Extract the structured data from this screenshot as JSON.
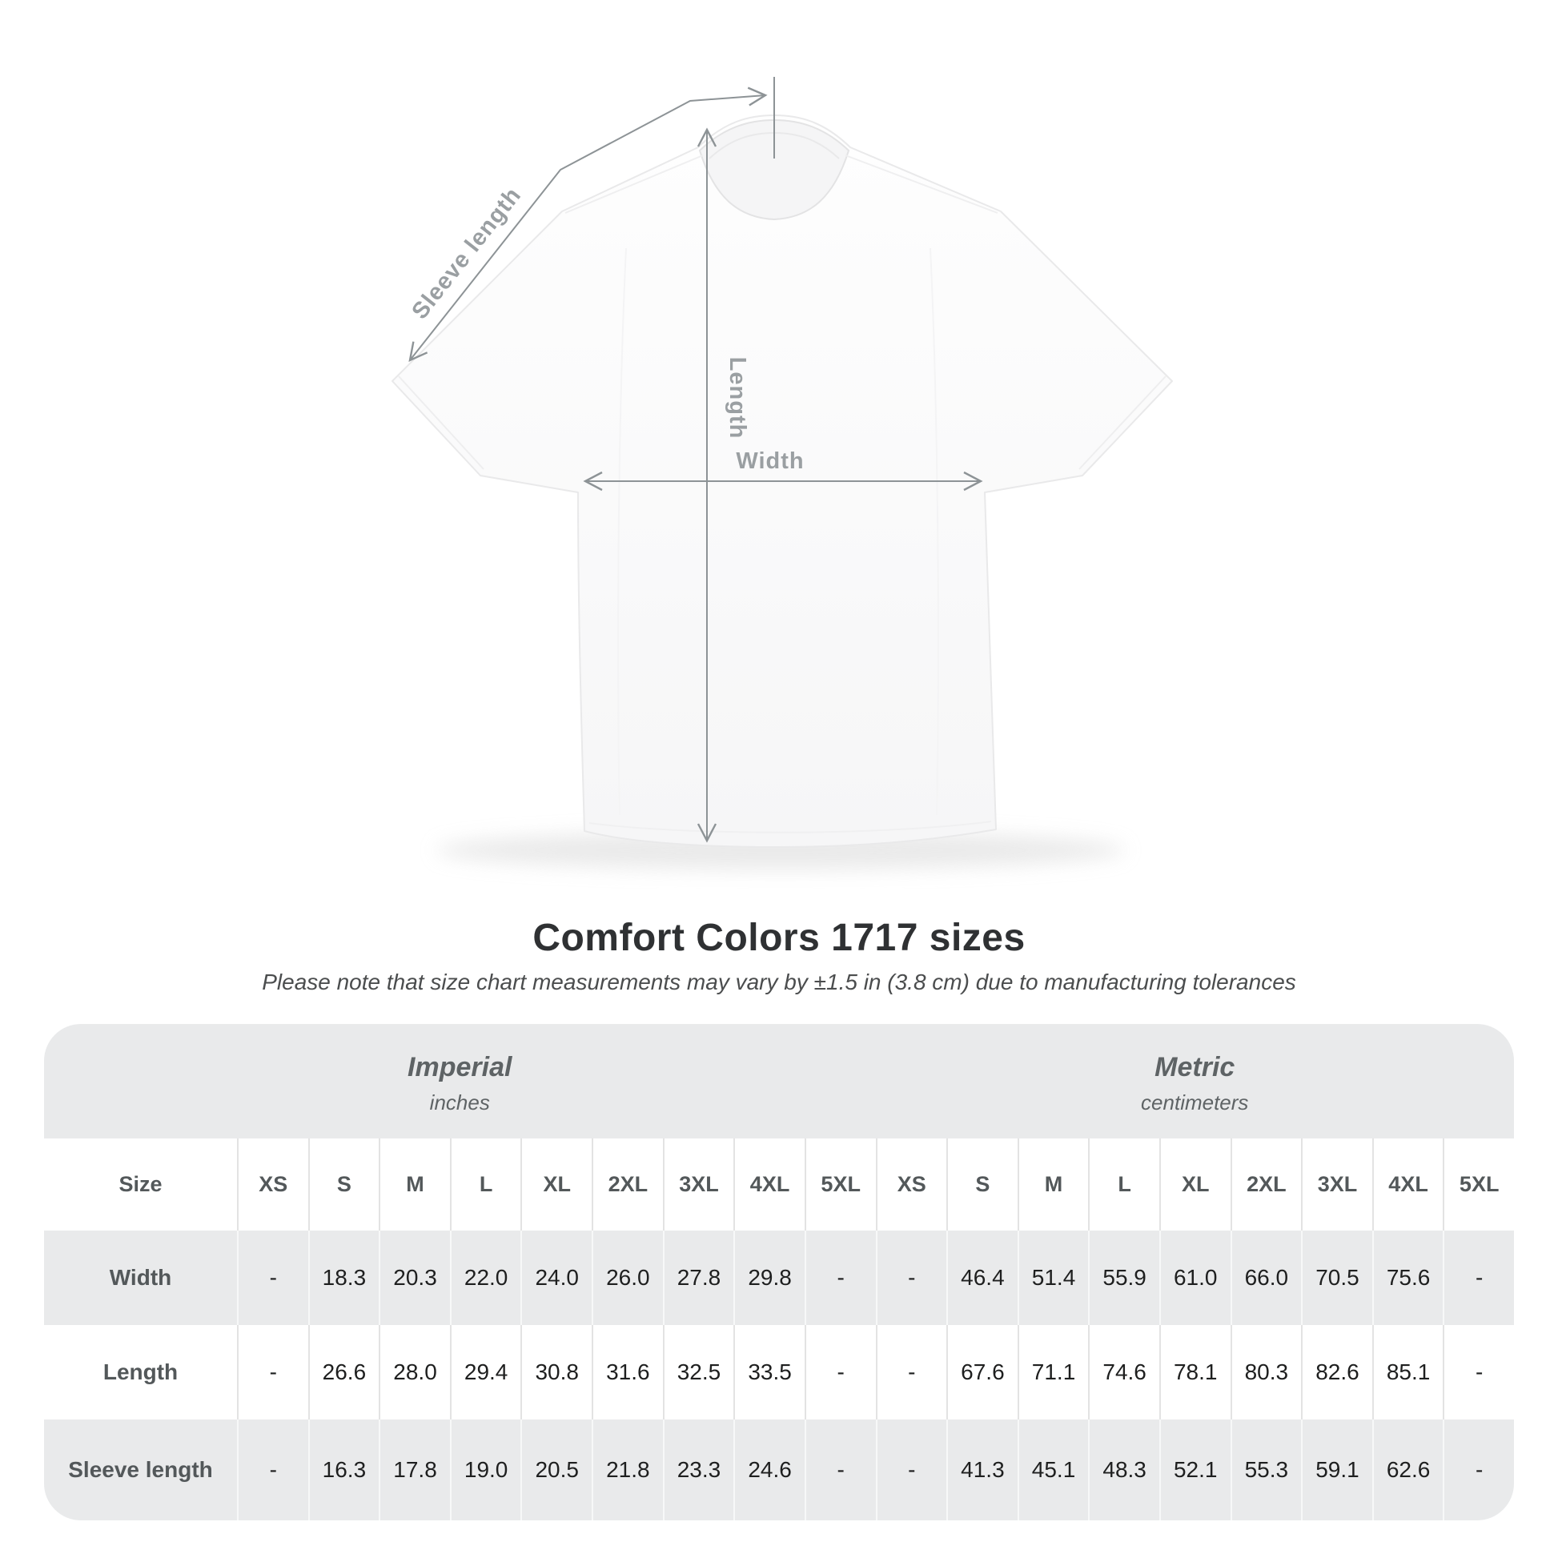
{
  "diagram": {
    "labels": {
      "sleeve_length": "Sleeve length",
      "length": "Length",
      "width": "Width"
    }
  },
  "heading": {
    "title": "Comfort Colors 1717 sizes",
    "subtitle": "Please note that size chart measurements may vary by ±1.5 in (3.8 cm) due to manufacturing tolerances"
  },
  "chart_data": {
    "type": "table",
    "title": "Comfort Colors 1717 sizes",
    "size_header_label": "Size",
    "groups": [
      {
        "name": "Imperial",
        "unit": "inches"
      },
      {
        "name": "Metric",
        "unit": "centimeters"
      }
    ],
    "sizes": [
      "XS",
      "S",
      "M",
      "L",
      "XL",
      "2XL",
      "3XL",
      "4XL",
      "5XL"
    ],
    "rows": [
      {
        "label": "Width",
        "imperial": [
          "-",
          "18.3",
          "20.3",
          "22.0",
          "24.0",
          "26.0",
          "27.8",
          "29.8",
          "-"
        ],
        "metric": [
          "-",
          "46.4",
          "51.4",
          "55.9",
          "61.0",
          "66.0",
          "70.5",
          "75.6",
          "-"
        ]
      },
      {
        "label": "Length",
        "imperial": [
          "-",
          "26.6",
          "28.0",
          "29.4",
          "30.8",
          "31.6",
          "32.5",
          "33.5",
          "-"
        ],
        "metric": [
          "-",
          "67.6",
          "71.1",
          "74.6",
          "78.1",
          "80.3",
          "82.6",
          "85.1",
          "-"
        ]
      },
      {
        "label": "Sleeve length",
        "imperial": [
          "-",
          "16.3",
          "17.8",
          "19.0",
          "20.5",
          "21.8",
          "23.3",
          "24.6",
          "-"
        ],
        "metric": [
          "-",
          "41.3",
          "45.1",
          "48.3",
          "52.1",
          "55.3",
          "59.1",
          "62.6",
          "-"
        ]
      }
    ]
  },
  "colors": {
    "panel_background": "#e9eaeb",
    "row_white": "#ffffff",
    "annotation_gray": "#9a9fa2",
    "annotation_line": "#8d9396",
    "title_text": "#2f3133",
    "value_text": "#1e1f1f",
    "header_text": "#53585a"
  }
}
